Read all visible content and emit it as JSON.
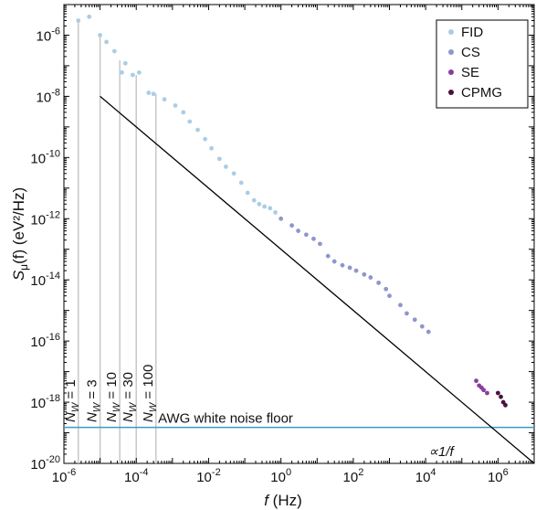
{
  "chart_data": {
    "type": "scatter",
    "title": "",
    "xlabel": {
      "base": "f",
      "unit": " (Hz)"
    },
    "ylabel": {
      "base": "S",
      "sub": "μ",
      "rest": "(f) (eV²/Hz)"
    },
    "x_scale": "log",
    "y_scale": "log",
    "xlim": [
      1e-06,
      10000000.0
    ],
    "ylim": [
      1e-20,
      1e-05
    ],
    "x_ticks": [
      {
        "base": "10",
        "exp": "-6",
        "value": 1e-06
      },
      {
        "base": "10",
        "exp": "-4",
        "value": 0.0001
      },
      {
        "base": "10",
        "exp": "-2",
        "value": 0.01
      },
      {
        "base": "10",
        "exp": "0",
        "value": 1
      },
      {
        "base": "10",
        "exp": "2",
        "value": 100
      },
      {
        "base": "10",
        "exp": "4",
        "value": 10000.0
      },
      {
        "base": "10",
        "exp": "6",
        "value": 1000000.0
      }
    ],
    "y_ticks": [
      {
        "base": "10",
        "exp": "-6",
        "value": 1e-06
      },
      {
        "base": "10",
        "exp": "-8",
        "value": 1e-08
      },
      {
        "base": "10",
        "exp": "-10",
        "value": 1e-10
      },
      {
        "base": "10",
        "exp": "-12",
        "value": 1e-12
      },
      {
        "base": "10",
        "exp": "-14",
        "value": 1e-14
      },
      {
        "base": "10",
        "exp": "-16",
        "value": 1e-16
      },
      {
        "base": "10",
        "exp": "-18",
        "value": 1e-18
      },
      {
        "base": "10",
        "exp": "-20",
        "value": 1e-20
      }
    ],
    "legend": {
      "placement": "top-right"
    },
    "series": [
      {
        "name": "FID",
        "color": "#aacde6",
        "points": [
          [
            2.5e-06,
            3e-06
          ],
          [
            5e-06,
            4e-06
          ],
          [
            1e-05,
            1e-06
          ],
          [
            1.5e-05,
            6e-07
          ],
          [
            2.5e-05,
            3e-07
          ],
          [
            4e-05,
            6e-08
          ],
          [
            5e-05,
            1.2e-07
          ],
          [
            8e-05,
            5e-08
          ],
          [
            0.00012,
            6e-08
          ],
          [
            0.00022,
            1.3e-08
          ],
          [
            0.0003,
            1.2e-08
          ],
          [
            0.0006,
            8e-09
          ],
          [
            0.0012,
            5e-09
          ],
          [
            0.002,
            3e-09
          ],
          [
            0.003,
            1.5e-09
          ],
          [
            0.005,
            8e-10
          ],
          [
            0.008,
            4e-10
          ],
          [
            0.012,
            2e-10
          ],
          [
            0.02,
            9e-11
          ],
          [
            0.03,
            5e-11
          ],
          [
            0.05,
            3e-11
          ],
          [
            0.08,
            1.5e-11
          ],
          [
            0.12,
            7e-12
          ],
          [
            0.18,
            4e-12
          ],
          [
            0.25,
            3e-12
          ],
          [
            0.35,
            2.5e-12
          ],
          [
            0.5,
            2.2e-12
          ],
          [
            0.7,
            1.6e-12
          ]
        ]
      },
      {
        "name": "CS",
        "color": "#8e96cc",
        "points": [
          [
            1,
            1e-12
          ],
          [
            2,
            6e-13
          ],
          [
            3,
            4e-13
          ],
          [
            5,
            3e-13
          ],
          [
            8,
            2.2e-13
          ],
          [
            12,
            1.5e-13
          ],
          [
            20,
            6e-14
          ],
          [
            30,
            4e-14
          ],
          [
            50,
            3e-14
          ],
          [
            80,
            2.5e-14
          ],
          [
            120,
            2e-14
          ],
          [
            200,
            1.5e-14
          ],
          [
            300,
            1.2e-14
          ],
          [
            500,
            8e-15
          ],
          [
            800,
            5e-15
          ],
          [
            1000,
            3e-15
          ],
          [
            2000,
            1.5e-15
          ],
          [
            3000,
            8e-16
          ],
          [
            5000,
            5e-16
          ],
          [
            8000,
            3e-16
          ],
          [
            12000,
            2e-16
          ]
        ]
      },
      {
        "name": "SE",
        "color": "#8b3d9e",
        "points": [
          [
            250000.0,
            5e-18
          ],
          [
            300000.0,
            3.5e-18
          ],
          [
            350000.0,
            3e-18
          ],
          [
            400000.0,
            2.5e-18
          ],
          [
            500000.0,
            2e-18
          ]
        ]
      },
      {
        "name": "CPMG",
        "color": "#4a1040",
        "points": [
          [
            1000000.0,
            2e-18
          ],
          [
            1200000.0,
            1.5e-18
          ],
          [
            1400000.0,
            1e-18
          ],
          [
            1600000.0,
            8e-19
          ]
        ]
      }
    ],
    "nw_lines": [
      {
        "label_base": "N",
        "label_sub": "W",
        "label_rest": " = 1",
        "x": 2.5e-06,
        "y_top": 3e-06
      },
      {
        "label_base": "N",
        "label_sub": "W",
        "label_rest": " = 3",
        "x": 1e-05,
        "y_top": 1e-06
      },
      {
        "label_base": "N",
        "label_sub": "W",
        "label_rest": " = 10",
        "x": 3.5e-05,
        "y_top": 1.5e-07
      },
      {
        "label_base": "N",
        "label_sub": "W",
        "label_rest": " = 30",
        "x": 0.0001,
        "y_top": 5e-08
      },
      {
        "label_base": "N",
        "label_sub": "W",
        "label_rest": " = 100",
        "x": 0.00035,
        "y_top": 1.2e-08
      }
    ],
    "annotations": {
      "noise_floor": {
        "label": "AWG white noise floor",
        "y": 1.5e-19,
        "color": "#3a9cc0"
      },
      "one_over_f": {
        "label": "∝1/f",
        "x_start": 1e-05,
        "y_start": 1e-08,
        "x_end": 10000000.0,
        "y_end": 1e-20
      }
    }
  }
}
